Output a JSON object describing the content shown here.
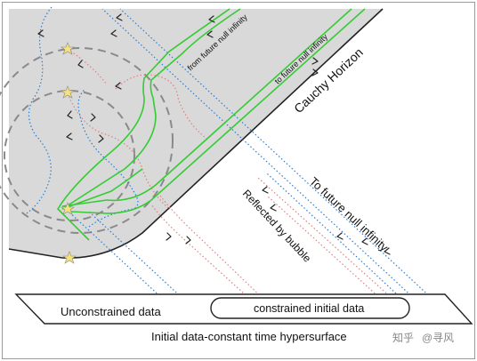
{
  "labels": {
    "from_future_null_infinity": "from future null infinity",
    "to_future_null_infinity_small": "to future null infinity",
    "cauchy_horizon": "Cauchy Horizon",
    "to_future_null_infinity_large": "To future null infinity",
    "reflected_by_bubble": "Reflected by bubble",
    "unconstrained_data": "Unconstrained data",
    "constrained_initial_data": "constrained initial data",
    "hypersurface_caption": "Initial data-constant time hypersurface"
  },
  "watermark": {
    "site": "知乎",
    "author": "@寻风"
  },
  "colors": {
    "region_fill": "#d9d9d9",
    "null_ray_blue": "#2a7fd4",
    "geodesic_green": "#33cc33",
    "reflected_red": "#e08080",
    "bubble_dash": "#8a8a8a",
    "star_fill": "#f5e27a",
    "boundary": "#222222"
  },
  "icons": {
    "marker": "star-icon",
    "direction": "chevron-arrow-icon"
  }
}
